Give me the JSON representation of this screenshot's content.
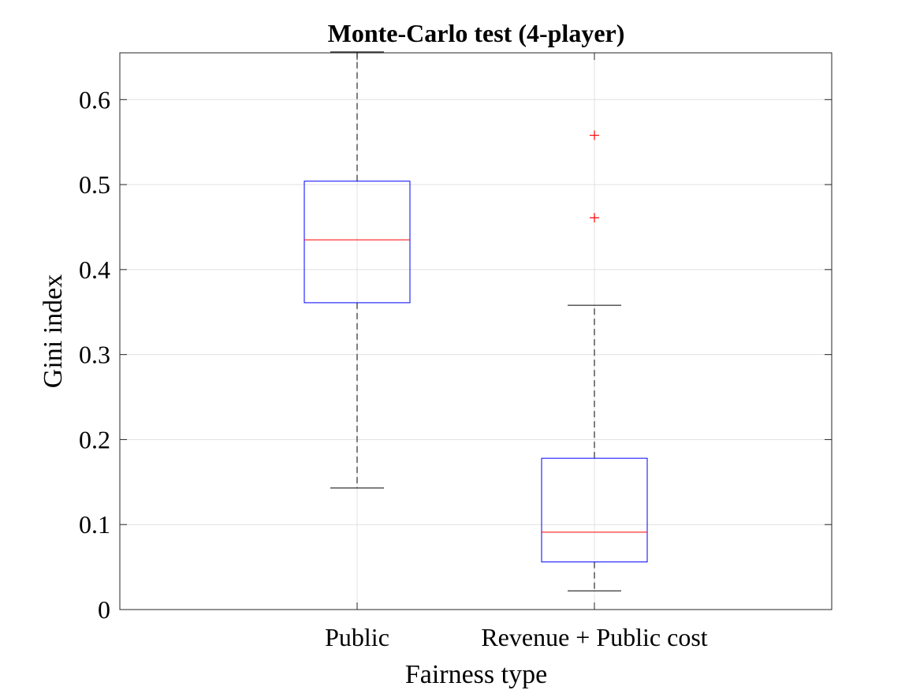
{
  "chart_data": {
    "type": "box",
    "title": "Monte-Carlo test (4-player)",
    "xlabel": "Fairness type",
    "ylabel": "Gini index",
    "categories": [
      "Public",
      "Revenue + Public cost"
    ],
    "ylim": [
      0,
      0.655
    ],
    "yticks": [
      0,
      0.1,
      0.2,
      0.3,
      0.4,
      0.5,
      0.6
    ],
    "ytick_labels": [
      "0",
      "0.1",
      "0.2",
      "0.3",
      "0.4",
      "0.5",
      "0.6"
    ],
    "grid": true,
    "boxes": [
      {
        "whisker_low": 0.143,
        "q1": 0.361,
        "median": 0.435,
        "q3": 0.504,
        "whisker_high": 0.656,
        "outliers": []
      },
      {
        "whisker_low": 0.022,
        "q1": 0.056,
        "median": 0.091,
        "q3": 0.178,
        "whisker_high": 0.358,
        "outliers": [
          0.461,
          0.558
        ]
      }
    ],
    "colors": {
      "box": "#0000ff",
      "median": "#ff0000",
      "whisker": "#000000",
      "outlier": "#ff0000",
      "grid": "#e0e0e0",
      "axes": "#262626"
    }
  }
}
